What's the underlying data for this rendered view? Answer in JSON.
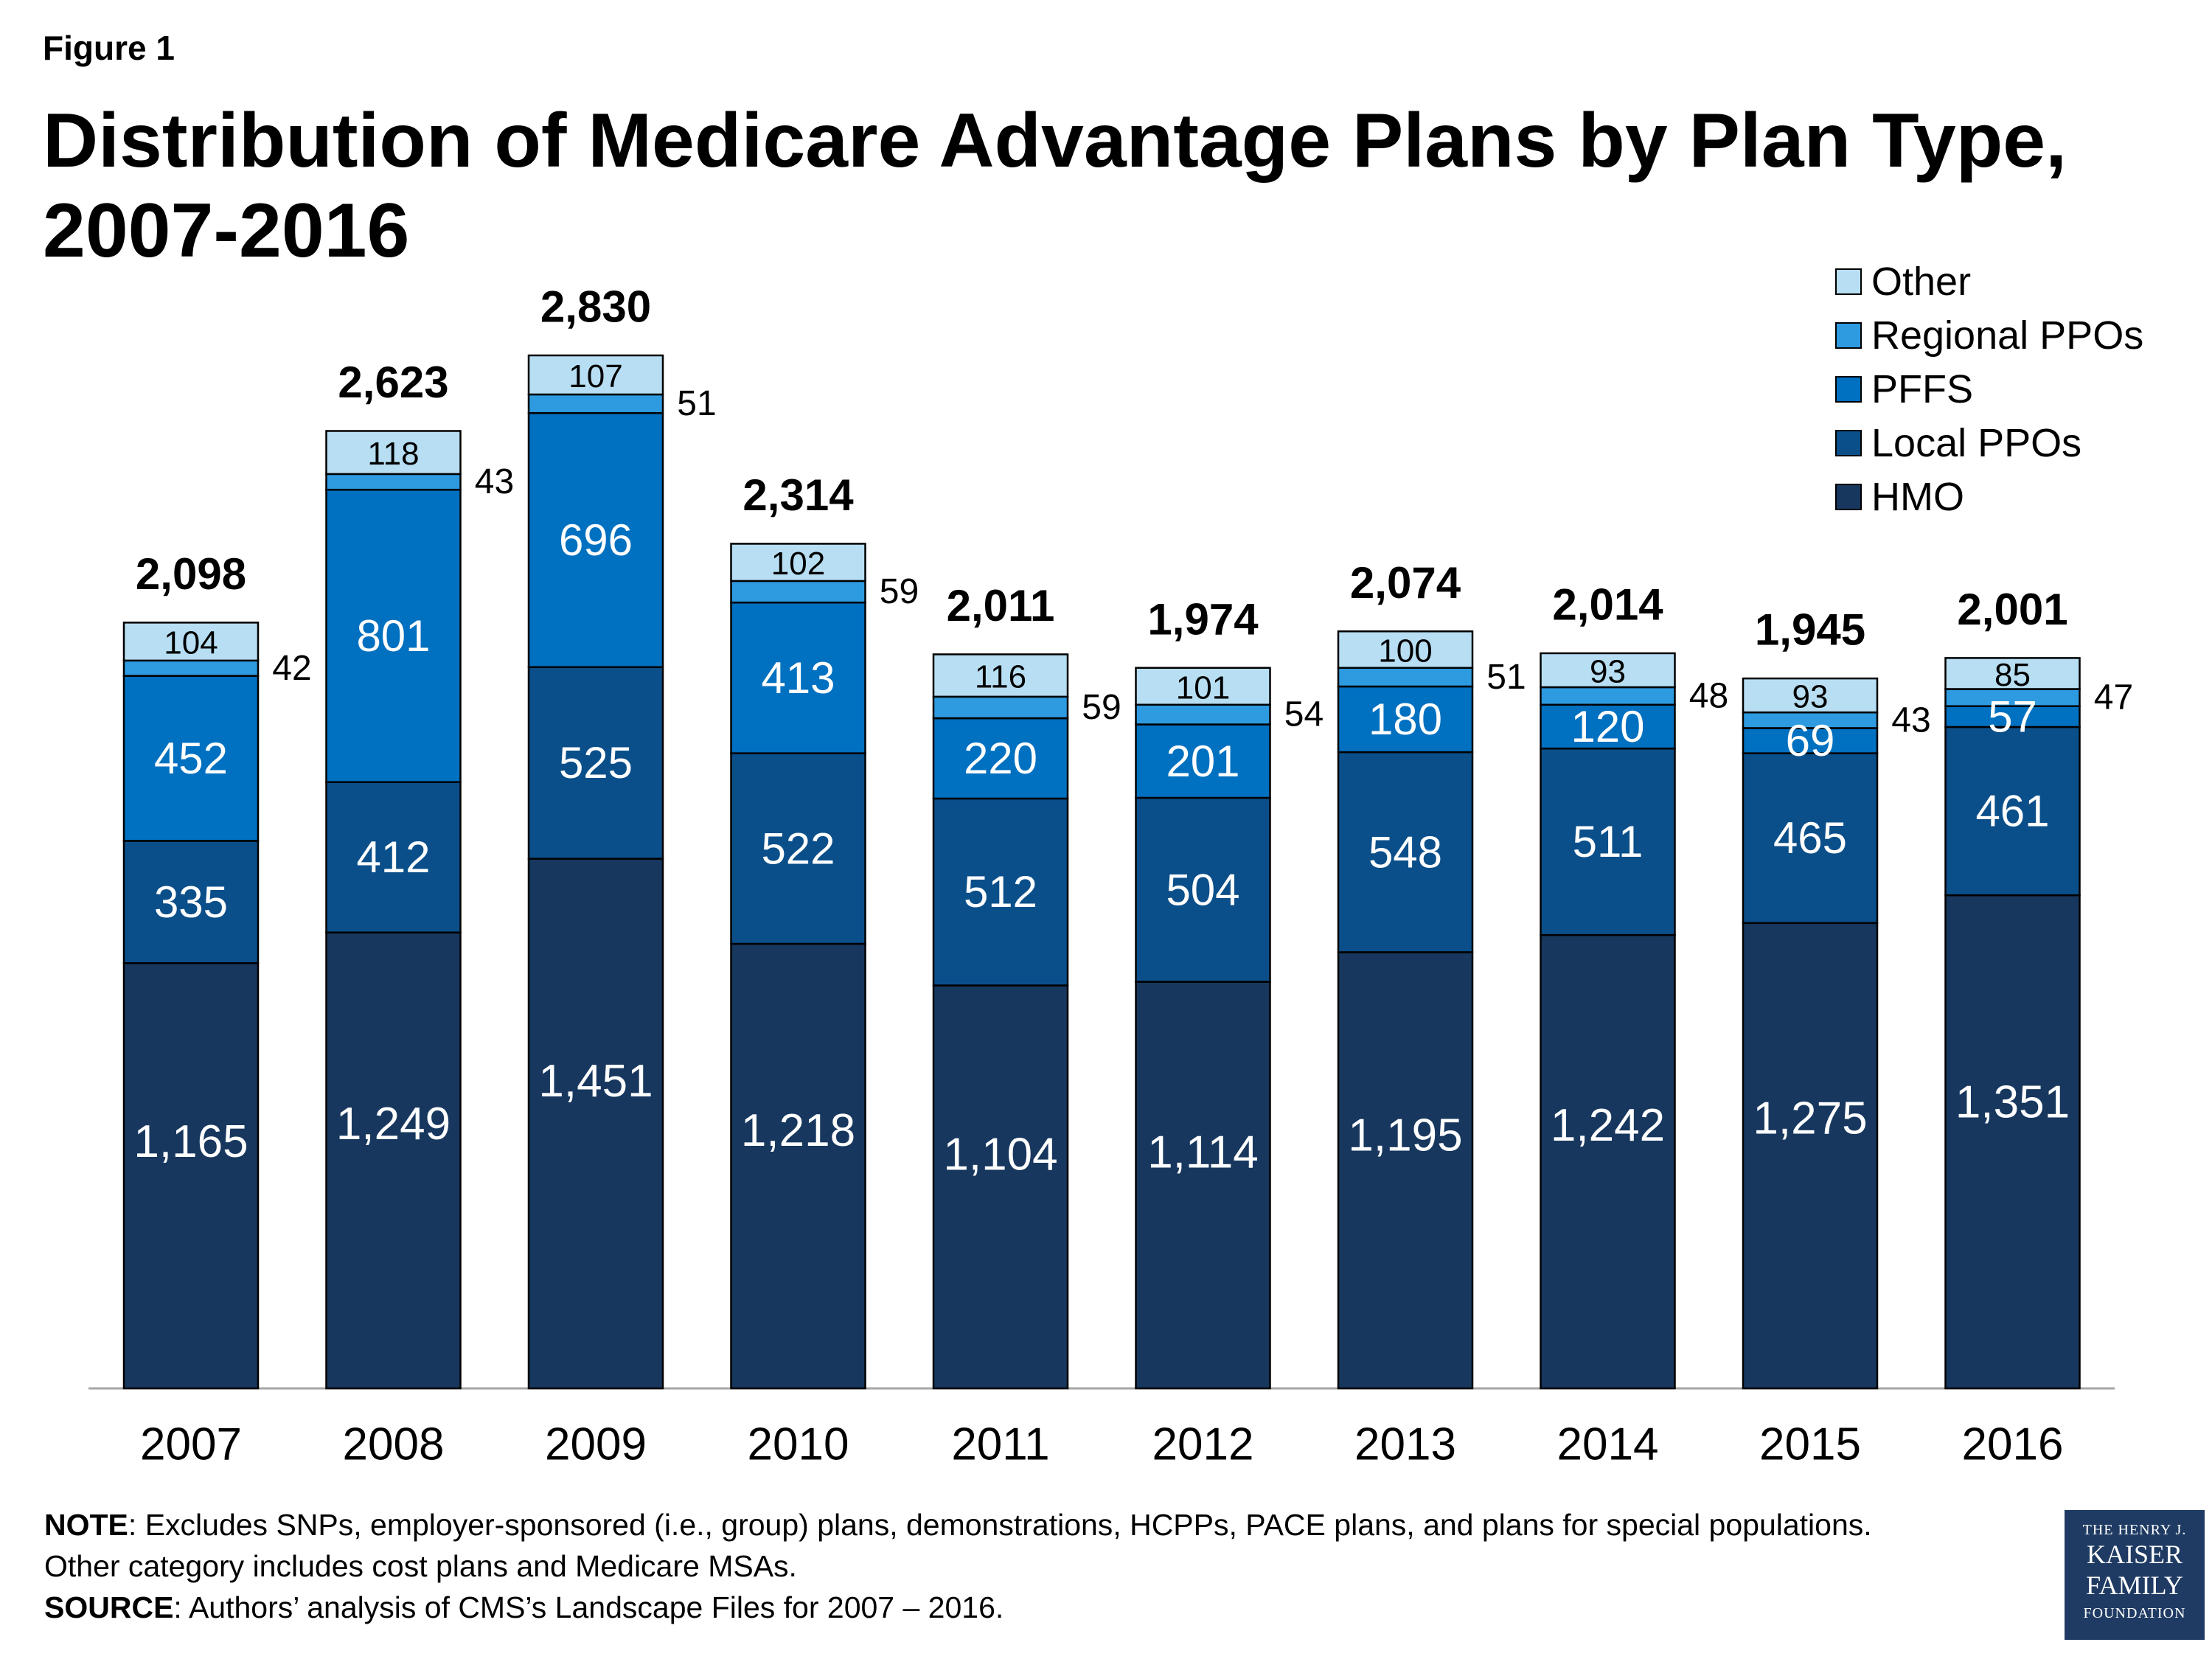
{
  "figure_label": "Figure 1",
  "chart_data": {
    "type": "bar",
    "stacked": true,
    "title": "Distribution of Medicare Advantage Plans by Plan Type, 2007-2016",
    "categories": [
      "2007",
      "2008",
      "2009",
      "2010",
      "2011",
      "2012",
      "2013",
      "2014",
      "2015",
      "2016"
    ],
    "totals": [
      "2,098",
      "2,623",
      "2,830",
      "2,314",
      "2,011",
      "1,974",
      "2,074",
      "2,014",
      "1,945",
      "2,001"
    ],
    "series": [
      {
        "name": "HMO",
        "color": "#17375e",
        "label_color": "#ffffff",
        "values": [
          1165,
          1249,
          1451,
          1218,
          1104,
          1114,
          1195,
          1242,
          1275,
          1351
        ],
        "labels": [
          "1,165",
          "1,249",
          "1,451",
          "1,218",
          "1,104",
          "1,114",
          "1,195",
          "1,242",
          "1,275",
          "1,351"
        ]
      },
      {
        "name": "Local PPOs",
        "color": "#0b4f8a",
        "label_color": "#ffffff",
        "values": [
          335,
          412,
          525,
          522,
          512,
          504,
          548,
          511,
          465,
          461
        ],
        "labels": [
          "335",
          "412",
          "525",
          "522",
          "512",
          "504",
          "548",
          "511",
          "465",
          "461"
        ]
      },
      {
        "name": "PFFS",
        "color": "#0070c0",
        "label_color": "#ffffff",
        "values": [
          452,
          801,
          696,
          413,
          220,
          201,
          180,
          120,
          69,
          57
        ],
        "labels": [
          "452",
          "801",
          "696",
          "413",
          "220",
          "201",
          "180",
          "120",
          "69",
          "57"
        ]
      },
      {
        "name": "Regional PPOs",
        "color": "#2e9be0",
        "label_color": "#000000",
        "values": [
          42,
          43,
          51,
          59,
          59,
          54,
          51,
          48,
          43,
          47
        ],
        "labels": [
          "42",
          "43",
          "51",
          "59",
          "59",
          "54",
          "51",
          "48",
          "43",
          "47"
        ]
      },
      {
        "name": "Other",
        "color": "#b7def2",
        "label_color": "#000000",
        "values": [
          104,
          118,
          107,
          102,
          116,
          101,
          100,
          93,
          93,
          85
        ],
        "labels": [
          "104",
          "118",
          "107",
          "102",
          "116",
          "101",
          "100",
          "93",
          "93",
          "85"
        ]
      }
    ],
    "ylim": [
      0,
      2830
    ],
    "grid": false,
    "legend_position": "top-right",
    "legend_order": [
      "Other",
      "Regional PPOs",
      "PFFS",
      "Local PPOs",
      "HMO"
    ]
  },
  "note": {
    "note_label": "NOTE",
    "note_text": ": Excludes SNPs, employer-sponsored (i.e., group) plans, demonstrations, HCPPs, PACE plans, and plans for special populations.  Other category includes cost plans and Medicare MSAs.",
    "source_label": "SOURCE",
    "source_text": ": Authors’ analysis of CMS’s Landscape Files for 2007 – 2016."
  },
  "logo": {
    "line1": "THE HENRY J.",
    "line2": "KAISER",
    "line3": "FAMILY",
    "line4": "FOUNDATION"
  }
}
